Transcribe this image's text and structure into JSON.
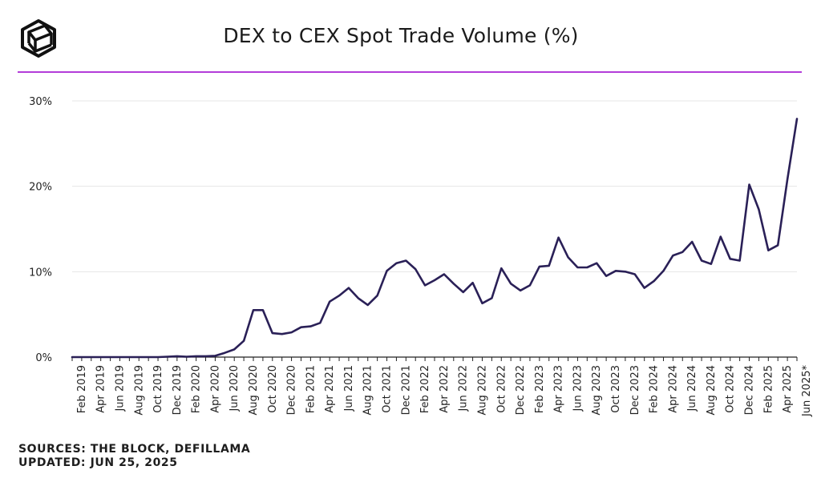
{
  "header": {
    "title": "DEX to CEX Spot Trade Volume (%)",
    "logo_icon": "the-block-cube-logo-icon"
  },
  "colors": {
    "line": "#2a2057",
    "accent_rule": "#b33cd9",
    "grid": "#e6e6e6",
    "axis": "#222222"
  },
  "chart_data": {
    "type": "line",
    "title": "DEX to CEX Spot Trade Volume (%)",
    "xlabel": "",
    "ylabel": "",
    "ylim": [
      0,
      30
    ],
    "grid": true,
    "y_ticks": [
      0,
      10,
      20,
      30
    ],
    "y_tick_labels": [
      "0%",
      "10%",
      "20%",
      "30%"
    ],
    "x_tick_labels": [
      "Feb 2019",
      "Apr 2019",
      "Jun 2019",
      "Aug 2019",
      "Oct 2019",
      "Dec 2019",
      "Feb 2020",
      "Apr 2020",
      "Jun 2020",
      "Aug 2020",
      "Oct 2020",
      "Dec 2020",
      "Feb 2021",
      "Apr 2021",
      "Jun 2021",
      "Aug 2021",
      "Oct 2021",
      "Dec 2021",
      "Feb 2022",
      "Apr 2022",
      "Jun 2022",
      "Aug 2022",
      "Oct 2022",
      "Dec 2022",
      "Feb 2023",
      "Apr 2023",
      "Jun 2023",
      "Aug 2023",
      "Oct 2023",
      "Dec 2023",
      "Feb 2024",
      "Apr 2024",
      "Jun 2024",
      "Aug 2024",
      "Oct 2024",
      "Dec 2024",
      "Feb 2025",
      "Apr 2025",
      "Jun 2025*"
    ],
    "series": [
      {
        "name": "DEX to CEX Spot Trade Volume (%)",
        "values": [
          0.0,
          0.0,
          0.0,
          0.0,
          0.0,
          0.0,
          0.0,
          0.0,
          0.0,
          0.0,
          0.05,
          0.1,
          0.05,
          0.1,
          0.1,
          0.15,
          0.5,
          0.9,
          1.9,
          5.5,
          5.5,
          2.8,
          2.7,
          2.9,
          3.5,
          3.6,
          4.0,
          6.5,
          7.2,
          8.1,
          6.9,
          6.1,
          7.2,
          10.1,
          11.0,
          11.3,
          10.3,
          8.4,
          9.0,
          9.7,
          8.6,
          7.6,
          8.7,
          6.3,
          6.9,
          10.4,
          8.6,
          7.8,
          8.4,
          10.6,
          10.7,
          14.0,
          11.7,
          10.5,
          10.5,
          11.0,
          9.5,
          10.1,
          10.0,
          9.7,
          8.1,
          8.9,
          10.1,
          11.9,
          12.3,
          13.5,
          11.3,
          10.9,
          14.1,
          11.5,
          11.3,
          20.2,
          17.3,
          12.5,
          13.1,
          20.8,
          27.9
        ]
      }
    ]
  },
  "footer": {
    "sources": "SOURCES: THE BLOCK, DEFILLAMA",
    "updated": "UPDATED: JUN 25, 2025"
  }
}
